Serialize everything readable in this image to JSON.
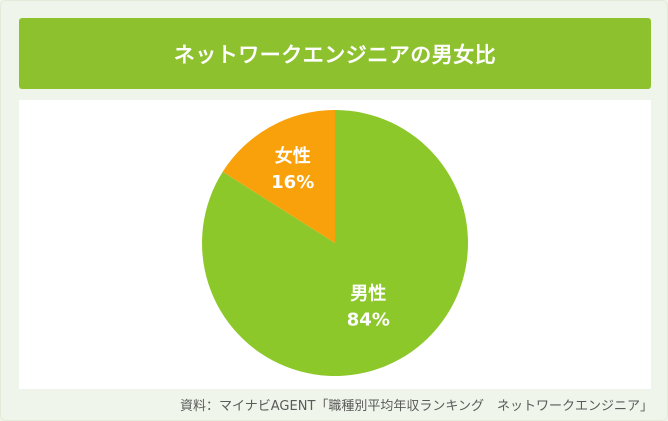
{
  "title": "ネットワークエンジニアの男女比",
  "source": "資料：マイナビAGENT「職種別平均年収ランキング　ネットワークエンジニア」",
  "colors": {
    "male": "#8dc82b",
    "female": "#f9a10a",
    "title_bg": "#8dc12e"
  },
  "chart_data": {
    "type": "pie",
    "title": "ネットワークエンジニアの男女比",
    "slices": [
      {
        "label": "男性",
        "value": 84,
        "value_label": "84%",
        "color": "#8dc82b"
      },
      {
        "label": "女性",
        "value": 16,
        "value_label": "16%",
        "color": "#f9a10a"
      }
    ],
    "start_angle": "12 o'clock",
    "direction": "clockwise, 男性 first"
  }
}
